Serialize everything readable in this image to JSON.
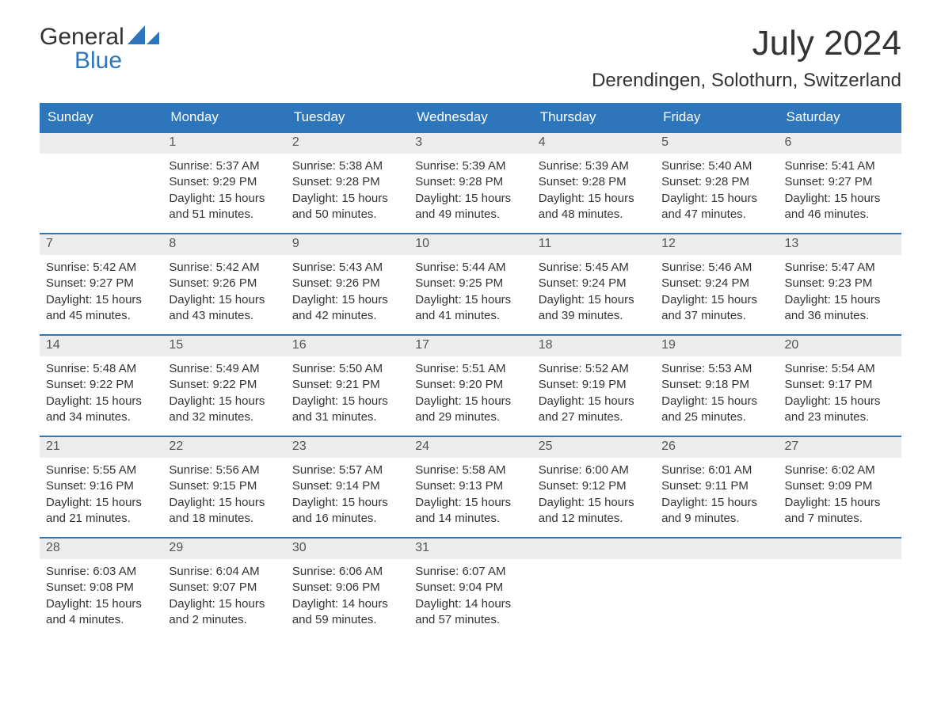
{
  "brand": {
    "word1": "General",
    "word2": "Blue",
    "iconColor": "#2d76bb"
  },
  "title": "July 2024",
  "location": "Derendingen, Solothurn, Switzerland",
  "colors": {
    "headerBg": "#2d76bb",
    "headerText": "#ffffff",
    "dayBarBg": "#ececec",
    "borderTop": "#2d76bb",
    "bodyText": "#333333"
  },
  "dayNames": [
    "Sunday",
    "Monday",
    "Tuesday",
    "Wednesday",
    "Thursday",
    "Friday",
    "Saturday"
  ],
  "weeks": [
    [
      null,
      {
        "n": "1",
        "sunrise": "Sunrise: 5:37 AM",
        "sunset": "Sunset: 9:29 PM",
        "daylight": "Daylight: 15 hours and 51 minutes."
      },
      {
        "n": "2",
        "sunrise": "Sunrise: 5:38 AM",
        "sunset": "Sunset: 9:28 PM",
        "daylight": "Daylight: 15 hours and 50 minutes."
      },
      {
        "n": "3",
        "sunrise": "Sunrise: 5:39 AM",
        "sunset": "Sunset: 9:28 PM",
        "daylight": "Daylight: 15 hours and 49 minutes."
      },
      {
        "n": "4",
        "sunrise": "Sunrise: 5:39 AM",
        "sunset": "Sunset: 9:28 PM",
        "daylight": "Daylight: 15 hours and 48 minutes."
      },
      {
        "n": "5",
        "sunrise": "Sunrise: 5:40 AM",
        "sunset": "Sunset: 9:28 PM",
        "daylight": "Daylight: 15 hours and 47 minutes."
      },
      {
        "n": "6",
        "sunrise": "Sunrise: 5:41 AM",
        "sunset": "Sunset: 9:27 PM",
        "daylight": "Daylight: 15 hours and 46 minutes."
      }
    ],
    [
      {
        "n": "7",
        "sunrise": "Sunrise: 5:42 AM",
        "sunset": "Sunset: 9:27 PM",
        "daylight": "Daylight: 15 hours and 45 minutes."
      },
      {
        "n": "8",
        "sunrise": "Sunrise: 5:42 AM",
        "sunset": "Sunset: 9:26 PM",
        "daylight": "Daylight: 15 hours and 43 minutes."
      },
      {
        "n": "9",
        "sunrise": "Sunrise: 5:43 AM",
        "sunset": "Sunset: 9:26 PM",
        "daylight": "Daylight: 15 hours and 42 minutes."
      },
      {
        "n": "10",
        "sunrise": "Sunrise: 5:44 AM",
        "sunset": "Sunset: 9:25 PM",
        "daylight": "Daylight: 15 hours and 41 minutes."
      },
      {
        "n": "11",
        "sunrise": "Sunrise: 5:45 AM",
        "sunset": "Sunset: 9:24 PM",
        "daylight": "Daylight: 15 hours and 39 minutes."
      },
      {
        "n": "12",
        "sunrise": "Sunrise: 5:46 AM",
        "sunset": "Sunset: 9:24 PM",
        "daylight": "Daylight: 15 hours and 37 minutes."
      },
      {
        "n": "13",
        "sunrise": "Sunrise: 5:47 AM",
        "sunset": "Sunset: 9:23 PM",
        "daylight": "Daylight: 15 hours and 36 minutes."
      }
    ],
    [
      {
        "n": "14",
        "sunrise": "Sunrise: 5:48 AM",
        "sunset": "Sunset: 9:22 PM",
        "daylight": "Daylight: 15 hours and 34 minutes."
      },
      {
        "n": "15",
        "sunrise": "Sunrise: 5:49 AM",
        "sunset": "Sunset: 9:22 PM",
        "daylight": "Daylight: 15 hours and 32 minutes."
      },
      {
        "n": "16",
        "sunrise": "Sunrise: 5:50 AM",
        "sunset": "Sunset: 9:21 PM",
        "daylight": "Daylight: 15 hours and 31 minutes."
      },
      {
        "n": "17",
        "sunrise": "Sunrise: 5:51 AM",
        "sunset": "Sunset: 9:20 PM",
        "daylight": "Daylight: 15 hours and 29 minutes."
      },
      {
        "n": "18",
        "sunrise": "Sunrise: 5:52 AM",
        "sunset": "Sunset: 9:19 PM",
        "daylight": "Daylight: 15 hours and 27 minutes."
      },
      {
        "n": "19",
        "sunrise": "Sunrise: 5:53 AM",
        "sunset": "Sunset: 9:18 PM",
        "daylight": "Daylight: 15 hours and 25 minutes."
      },
      {
        "n": "20",
        "sunrise": "Sunrise: 5:54 AM",
        "sunset": "Sunset: 9:17 PM",
        "daylight": "Daylight: 15 hours and 23 minutes."
      }
    ],
    [
      {
        "n": "21",
        "sunrise": "Sunrise: 5:55 AM",
        "sunset": "Sunset: 9:16 PM",
        "daylight": "Daylight: 15 hours and 21 minutes."
      },
      {
        "n": "22",
        "sunrise": "Sunrise: 5:56 AM",
        "sunset": "Sunset: 9:15 PM",
        "daylight": "Daylight: 15 hours and 18 minutes."
      },
      {
        "n": "23",
        "sunrise": "Sunrise: 5:57 AM",
        "sunset": "Sunset: 9:14 PM",
        "daylight": "Daylight: 15 hours and 16 minutes."
      },
      {
        "n": "24",
        "sunrise": "Sunrise: 5:58 AM",
        "sunset": "Sunset: 9:13 PM",
        "daylight": "Daylight: 15 hours and 14 minutes."
      },
      {
        "n": "25",
        "sunrise": "Sunrise: 6:00 AM",
        "sunset": "Sunset: 9:12 PM",
        "daylight": "Daylight: 15 hours and 12 minutes."
      },
      {
        "n": "26",
        "sunrise": "Sunrise: 6:01 AM",
        "sunset": "Sunset: 9:11 PM",
        "daylight": "Daylight: 15 hours and 9 minutes."
      },
      {
        "n": "27",
        "sunrise": "Sunrise: 6:02 AM",
        "sunset": "Sunset: 9:09 PM",
        "daylight": "Daylight: 15 hours and 7 minutes."
      }
    ],
    [
      {
        "n": "28",
        "sunrise": "Sunrise: 6:03 AM",
        "sunset": "Sunset: 9:08 PM",
        "daylight": "Daylight: 15 hours and 4 minutes."
      },
      {
        "n": "29",
        "sunrise": "Sunrise: 6:04 AM",
        "sunset": "Sunset: 9:07 PM",
        "daylight": "Daylight: 15 hours and 2 minutes."
      },
      {
        "n": "30",
        "sunrise": "Sunrise: 6:06 AM",
        "sunset": "Sunset: 9:06 PM",
        "daylight": "Daylight: 14 hours and 59 minutes."
      },
      {
        "n": "31",
        "sunrise": "Sunrise: 6:07 AM",
        "sunset": "Sunset: 9:04 PM",
        "daylight": "Daylight: 14 hours and 57 minutes."
      },
      null,
      null,
      null
    ]
  ]
}
